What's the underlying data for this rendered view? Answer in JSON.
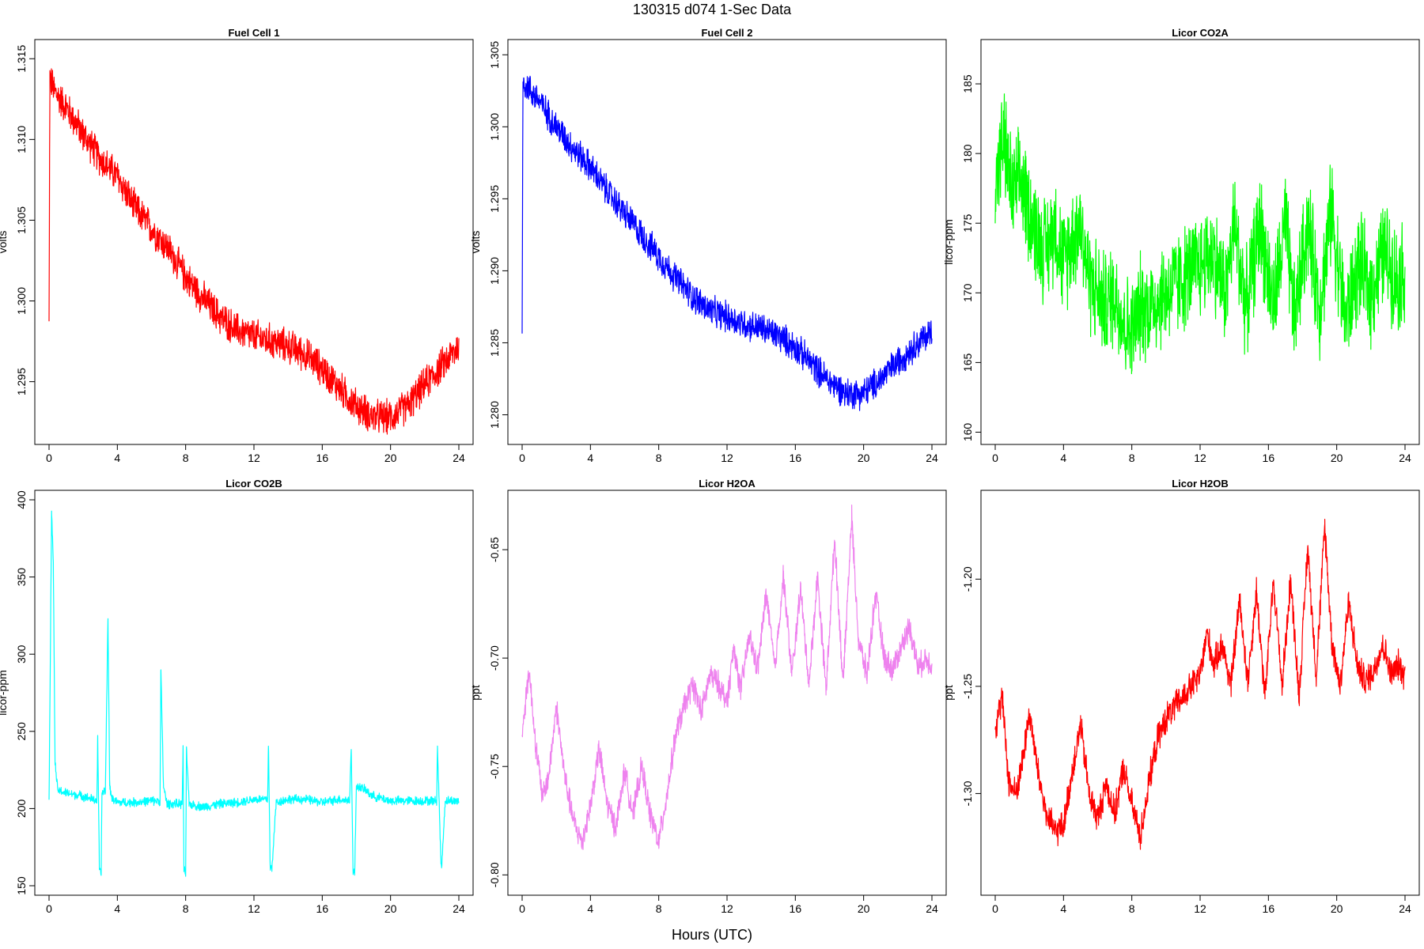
{
  "figure": {
    "title": "130315   d074   1-Sec Data",
    "xlabel": "Hours (UTC)"
  },
  "chart_data": [
    {
      "type": "line",
      "title": "Fuel Cell 1",
      "ylabel": "volts",
      "color": "#ff0000",
      "xlim": [
        0,
        24
      ],
      "ylim": [
        1.2917,
        1.3156
      ],
      "xticks": [
        "0",
        "4",
        "8",
        "12",
        "16",
        "20",
        "24"
      ],
      "yticks": [
        "1.295",
        "1.300",
        "1.305",
        "1.310",
        "1.315"
      ],
      "noise": 0.0009,
      "series": [
        {
          "x": [
            0,
            0.05,
            0.3,
            1,
            2,
            3,
            4,
            5,
            6,
            7,
            8,
            9,
            10,
            11,
            12,
            13,
            14,
            15,
            16,
            17,
            18,
            19,
            20,
            21,
            22,
            23,
            24
          ],
          "y": [
            1.2985,
            1.3138,
            1.313,
            1.312,
            1.3103,
            1.3088,
            1.3077,
            1.3058,
            1.3045,
            1.3032,
            1.3015,
            1.3002,
            1.299,
            1.2982,
            1.2978,
            1.2975,
            1.2972,
            1.2967,
            1.2958,
            1.2946,
            1.2935,
            1.2928,
            1.2928,
            1.2935,
            1.2948,
            1.296,
            1.2972
          ]
        }
      ]
    },
    {
      "type": "line",
      "title": "Fuel Cell 2",
      "ylabel": "volts",
      "color": "#0000ff",
      "xlim": [
        0,
        24
      ],
      "ylim": [
        1.2786,
        1.3054
      ],
      "xticks": [
        "0",
        "4",
        "8",
        "12",
        "16",
        "20",
        "24"
      ],
      "yticks": [
        "1.280",
        "1.285",
        "1.290",
        "1.295",
        "1.300",
        "1.305"
      ],
      "noise": 0.0009,
      "series": [
        {
          "x": [
            0,
            0.05,
            0.3,
            1,
            2,
            3,
            4,
            5,
            6,
            7,
            8,
            9,
            10,
            11,
            12,
            13,
            14,
            15,
            16,
            17,
            18,
            19,
            20,
            21,
            22,
            23,
            24
          ],
          "y": [
            1.2855,
            1.3032,
            1.3028,
            1.3018,
            1.3,
            1.2985,
            1.2972,
            1.2955,
            1.294,
            1.2925,
            1.291,
            1.2895,
            1.2882,
            1.2872,
            1.2868,
            1.2863,
            1.286,
            1.2855,
            1.2847,
            1.2835,
            1.2823,
            1.2815,
            1.2815,
            1.2825,
            1.2837,
            1.2848,
            1.2858
          ]
        }
      ]
    },
    {
      "type": "line",
      "title": "Licor CO2A",
      "ylabel": "licor-ppm",
      "color": "#00ff00",
      "xlim": [
        0,
        24
      ],
      "ylim": [
        159.8,
        187.5
      ],
      "xticks": [
        "0",
        "4",
        "8",
        "12",
        "16",
        "20",
        "24"
      ],
      "yticks": [
        "160",
        "165",
        "170",
        "175",
        "180",
        "185"
      ],
      "noise": 3.2,
      "series": [
        {
          "x": [
            0,
            0.5,
            1,
            1.5,
            2,
            2.5,
            3,
            3.5,
            4,
            4.5,
            5,
            5.5,
            6,
            6.5,
            7,
            7.5,
            8,
            8.5,
            9,
            10,
            11,
            12,
            12.7,
            13.5,
            14,
            14.7,
            15.5,
            16.3,
            17,
            17.5,
            18.3,
            19,
            19.7,
            20.5,
            21.3,
            22,
            22.8,
            23.5,
            24
          ],
          "y": [
            178,
            181,
            177,
            178,
            176,
            174,
            173,
            175,
            172,
            174,
            175,
            171,
            170,
            169,
            170,
            168,
            167,
            169,
            169,
            170,
            171,
            172,
            173,
            170,
            175,
            169,
            175,
            169,
            175,
            168,
            175,
            169,
            176,
            168,
            172,
            170,
            173,
            171,
            171.5
          ]
        }
      ]
    },
    {
      "type": "line",
      "title": "Licor CO2B",
      "ylabel": "licor-ppm",
      "color": "#00ffff",
      "xlim": [
        0,
        24
      ],
      "ylim": [
        150,
        400
      ],
      "xticks": [
        "0",
        "4",
        "8",
        "12",
        "16",
        "20",
        "24"
      ],
      "yticks": [
        "150",
        "200",
        "250",
        "300",
        "350",
        "400"
      ],
      "noise": 2.5,
      "series": [
        {
          "x": [
            0,
            0.15,
            0.25,
            0.35,
            0.5,
            1,
            2,
            2.8,
            2.85,
            2.95,
            3.05,
            3.1,
            3.3,
            3.45,
            3.55,
            3.7,
            4,
            5,
            6,
            6.5,
            6.55,
            6.7,
            6.9,
            7.8,
            7.85,
            7.9,
            8.0,
            8.05,
            8.2,
            9,
            10,
            11,
            12,
            12.8,
            12.85,
            12.95,
            13.05,
            13.3,
            14,
            15,
            16,
            17,
            17.6,
            17.7,
            17.8,
            17.9,
            18.0,
            18.5,
            19,
            20,
            21,
            22,
            22.7,
            22.75,
            22.95,
            23.0,
            23.2,
            24
          ],
          "y": [
            205,
            392,
            360,
            230,
            212,
            210,
            208,
            205,
            245,
            160,
            158,
            210,
            212,
            325,
            215,
            206,
            204,
            204,
            205,
            205,
            290,
            215,
            203,
            203,
            240,
            160,
            158,
            238,
            203,
            201,
            203,
            204,
            206,
            206,
            242,
            162,
            161,
            204,
            206,
            206,
            204,
            206,
            205,
            240,
            160,
            158,
            215,
            212,
            208,
            205,
            205,
            205,
            205,
            240,
            165,
            163,
            205,
            205
          ]
        }
      ]
    },
    {
      "type": "line",
      "title": "Licor H2OA",
      "ylabel": "ppt",
      "color": "#ee82ee",
      "xlim": [
        0,
        24
      ],
      "ylim": [
        -0.805,
        -0.627
      ],
      "xticks": [
        "0",
        "4",
        "8",
        "12",
        "16",
        "20",
        "24"
      ],
      "yticks": [
        "-0.80",
        "-0.75",
        "-0.70",
        "-0.65"
      ],
      "noise": 0.005,
      "series": [
        {
          "x": [
            0,
            0.4,
            0.8,
            1.2,
            1.6,
            2.0,
            2.5,
            3.0,
            3.5,
            4.0,
            4.5,
            5.0,
            5.5,
            6.0,
            6.5,
            7.0,
            7.5,
            8.0,
            8.5,
            9.0,
            9.5,
            10.0,
            10.5,
            11.0,
            11.5,
            12.0,
            12.4,
            12.8,
            13.3,
            13.8,
            14.3,
            14.8,
            15.3,
            15.8,
            16.3,
            16.8,
            17.3,
            17.8,
            18.3,
            18.8,
            19.3,
            19.7,
            20.2,
            20.7,
            21.2,
            21.7,
            22.2,
            22.7,
            23.2,
            23.6,
            24.0
          ],
          "y": [
            -0.735,
            -0.705,
            -0.74,
            -0.765,
            -0.752,
            -0.722,
            -0.755,
            -0.775,
            -0.785,
            -0.768,
            -0.742,
            -0.768,
            -0.778,
            -0.752,
            -0.772,
            -0.75,
            -0.772,
            -0.785,
            -0.762,
            -0.735,
            -0.722,
            -0.712,
            -0.725,
            -0.708,
            -0.712,
            -0.72,
            -0.695,
            -0.715,
            -0.69,
            -0.705,
            -0.67,
            -0.705,
            -0.662,
            -0.708,
            -0.668,
            -0.712,
            -0.662,
            -0.715,
            -0.645,
            -0.712,
            -0.635,
            -0.692,
            -0.708,
            -0.67,
            -0.7,
            -0.705,
            -0.695,
            -0.685,
            -0.705,
            -0.7,
            -0.703
          ]
        }
      ]
    },
    {
      "type": "line",
      "title": "Licor H2OB",
      "ylabel": "ppt",
      "color": "#ff0000",
      "xlim": [
        0,
        24
      ],
      "ylim": [
        -1.343,
        -1.163
      ],
      "xticks": [
        "0",
        "4",
        "8",
        "12",
        "16",
        "20",
        "24"
      ],
      "yticks": [
        "-1.30",
        "-1.25",
        "-1.20"
      ],
      "noise": 0.006,
      "series": [
        {
          "x": [
            0,
            0.4,
            0.8,
            1.2,
            1.6,
            2.0,
            2.5,
            3.0,
            3.5,
            4.0,
            4.5,
            5.0,
            5.5,
            6.0,
            6.5,
            7.0,
            7.5,
            8.0,
            8.5,
            9.0,
            9.5,
            10.0,
            10.5,
            11.0,
            11.5,
            12.0,
            12.4,
            12.8,
            13.3,
            13.8,
            14.3,
            14.8,
            15.3,
            15.8,
            16.3,
            16.8,
            17.3,
            17.8,
            18.3,
            18.8,
            19.3,
            19.7,
            20.2,
            20.7,
            21.2,
            21.7,
            22.2,
            22.7,
            23.2,
            23.6,
            24.0
          ],
          "y": [
            -1.27,
            -1.255,
            -1.295,
            -1.3,
            -1.285,
            -1.262,
            -1.29,
            -1.31,
            -1.318,
            -1.315,
            -1.29,
            -1.268,
            -1.3,
            -1.312,
            -1.295,
            -1.31,
            -1.288,
            -1.305,
            -1.32,
            -1.295,
            -1.275,
            -1.265,
            -1.26,
            -1.255,
            -1.25,
            -1.245,
            -1.225,
            -1.24,
            -1.23,
            -1.25,
            -1.21,
            -1.248,
            -1.205,
            -1.255,
            -1.2,
            -1.25,
            -1.2,
            -1.255,
            -1.185,
            -1.245,
            -1.175,
            -1.228,
            -1.25,
            -1.21,
            -1.24,
            -1.248,
            -1.242,
            -1.23,
            -1.245,
            -1.24,
            -1.245
          ]
        }
      ]
    }
  ]
}
